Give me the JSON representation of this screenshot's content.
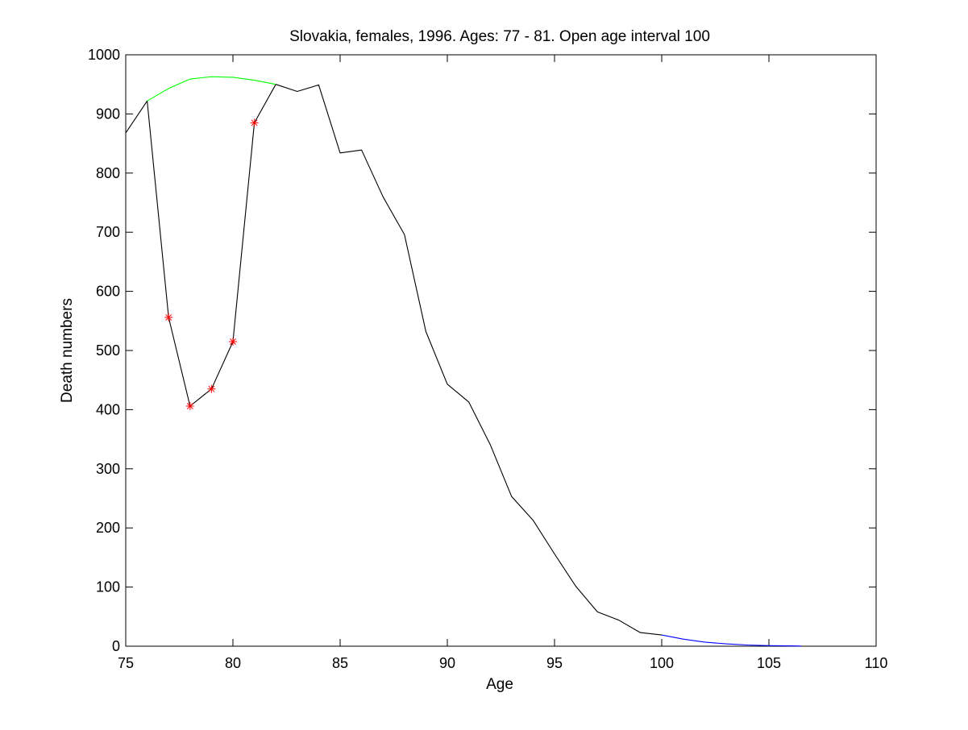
{
  "chart_data": {
    "type": "line",
    "title": "Slovakia, females, 1996. Ages: 77 - 81. Open age interval 100",
    "xlabel": "Age",
    "ylabel": "Death numbers",
    "xlim": [
      75,
      110
    ],
    "ylim": [
      0,
      1000
    ],
    "xticks": [
      75,
      80,
      85,
      90,
      95,
      100,
      105,
      110
    ],
    "yticks": [
      0,
      100,
      200,
      300,
      400,
      500,
      600,
      700,
      800,
      900,
      1000
    ],
    "grid": false,
    "series": [
      {
        "style": "line",
        "color": "#000000",
        "x": [
          75,
          76,
          77,
          78,
          79,
          80,
          81,
          82,
          83,
          84,
          85,
          86,
          87,
          88,
          89,
          90,
          91,
          92,
          93,
          94,
          95,
          96,
          97,
          98,
          99,
          100
        ],
        "y": [
          868,
          922,
          556,
          406,
          435,
          515,
          885,
          950,
          938,
          949,
          834,
          839,
          760,
          696,
          532,
          443,
          413,
          341,
          253,
          213,
          156,
          101,
          58,
          44,
          23,
          19
        ]
      },
      {
        "style": "line",
        "color": "#00ff00",
        "x": [
          76,
          77,
          78,
          79,
          80,
          81,
          82
        ],
        "y": [
          922,
          943,
          959,
          963,
          962,
          957,
          950
        ]
      },
      {
        "style": "line",
        "color": "#0000ff",
        "x": [
          100,
          101,
          102,
          103,
          104,
          105,
          106,
          106.5
        ],
        "y": [
          19,
          12,
          7,
          4,
          2,
          1,
          0.5,
          0.3
        ]
      },
      {
        "style": "markers",
        "marker": "asterisk",
        "color": "#ff0000",
        "x": [
          77,
          78,
          79,
          80,
          81
        ],
        "y": [
          556,
          406,
          435,
          515,
          885
        ]
      }
    ]
  }
}
